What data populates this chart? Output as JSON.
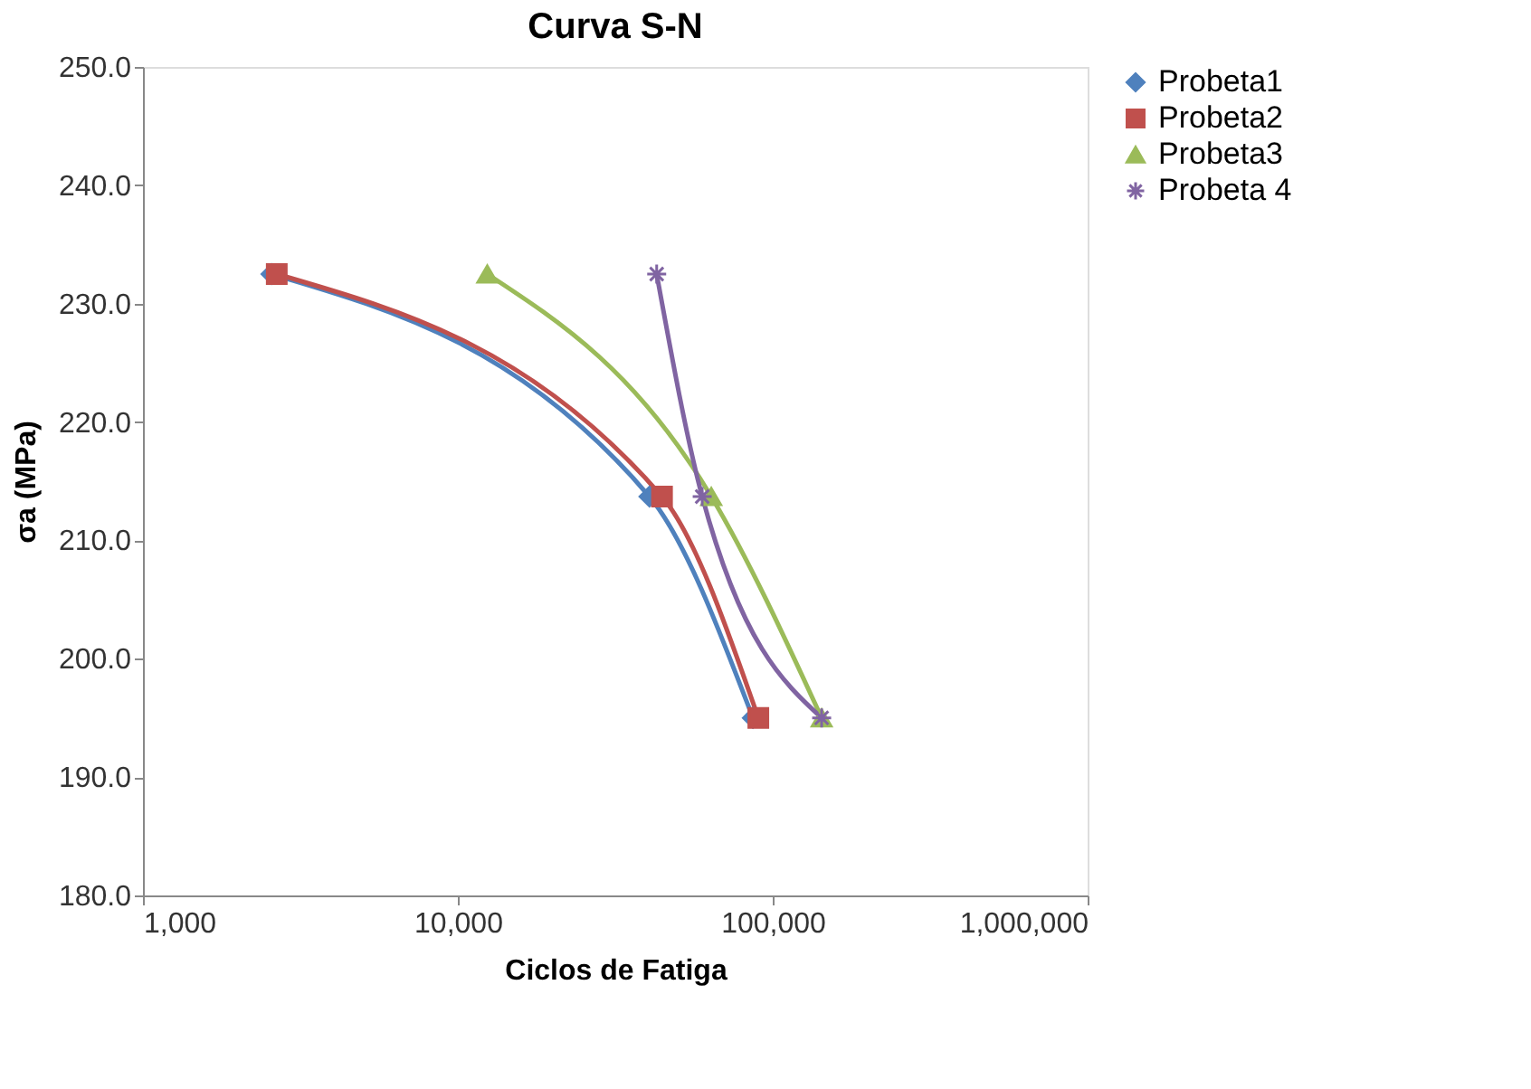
{
  "chart_data": {
    "type": "line",
    "title": "Curva S-N",
    "xlabel": "Ciclos de Fatiga",
    "ylabel": "σa (MPa)",
    "log": "x",
    "grid": false,
    "legend": "right",
    "xlim": [
      1000,
      1000000
    ],
    "xticks": [
      {
        "value": 1000,
        "label": "1,000"
      },
      {
        "value": 10000,
        "label": "10,000"
      },
      {
        "value": 100000,
        "label": "100,000"
      },
      {
        "value": 1000000,
        "label": "1,000,000"
      }
    ],
    "ylim": [
      180,
      250
    ],
    "yticks": [
      {
        "value": 180,
        "label": "180.0"
      },
      {
        "value": 190,
        "label": "190.0"
      },
      {
        "value": 200,
        "label": "200.0"
      },
      {
        "value": 210,
        "label": "210.0"
      },
      {
        "value": 220,
        "label": "220.0"
      },
      {
        "value": 230,
        "label": "230.0"
      },
      {
        "value": 240,
        "label": "240.0"
      },
      {
        "value": 250,
        "label": "250.0"
      }
    ],
    "series": [
      {
        "name": "Probeta1",
        "color": "#4f81bd",
        "marker": "diamond",
        "x": [
          2560,
          40600,
          86500
        ],
        "values": [
          232.5,
          213.7,
          195.0
        ]
      },
      {
        "name": "Probeta2",
        "color": "#c0504d",
        "marker": "square",
        "x": [
          2660,
          44500,
          90000
        ],
        "values": [
          232.5,
          213.7,
          195.0
        ]
      },
      {
        "name": "Probeta3",
        "color": "#9bbb59",
        "marker": "triangle",
        "x": [
          12400,
          63800,
          143000
        ],
        "values": [
          232.5,
          213.7,
          195.0
        ]
      },
      {
        "name": "Probeta 4",
        "color": "#8064a2",
        "marker": "cross",
        "x": [
          42800,
          59700,
          143000
        ],
        "values": [
          232.5,
          213.7,
          195.0
        ]
      }
    ]
  }
}
